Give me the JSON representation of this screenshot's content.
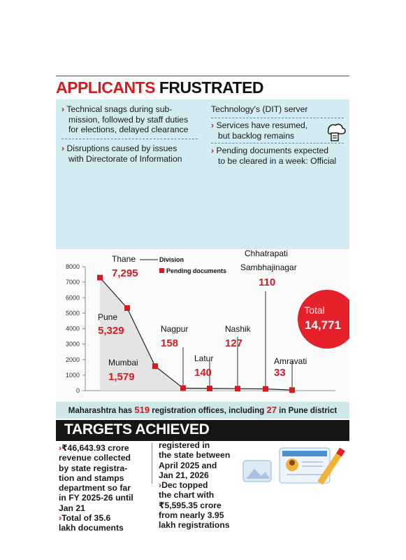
{
  "header": {
    "title_red": "APPLICANTS",
    "title_black": "FRUSTRATED"
  },
  "info": {
    "b1": [
      "Technical snags during sub-",
      "mission, followed by staff duties",
      "for elections, delayed clearance"
    ],
    "b2": [
      "Disruptions caused by issues",
      "with Directorate of Information"
    ],
    "b3": [
      "Technology's (DIT) server"
    ],
    "b4": [
      "Services have resumed,",
      "but backlog remains"
    ],
    "b5": [
      "Pending documents expected",
      "to be cleared in a week: Official"
    ],
    "icon": "server-cloud-icon"
  },
  "chart_data": {
    "type": "area",
    "categories": [
      "Thane",
      "Pune",
      "Mumbai",
      "Nagpur",
      "Latur",
      "Nashik",
      "Chhatrapati Sambhajinagar",
      "Amravati"
    ],
    "values": [
      7295,
      5329,
      1579,
      158,
      140,
      127,
      110,
      33
    ],
    "value_labels": [
      "7,295",
      "5,329",
      "1,579",
      "158",
      "140",
      "127",
      "110",
      "33"
    ],
    "category_labels": [
      "Thane",
      "Pune",
      "Mumbai",
      "Nagpur",
      "Latur",
      "Nashik",
      "Chhatrapati",
      "Amravati"
    ],
    "category_label_line2": "Sambhajinagar",
    "yticks": [
      0,
      1000,
      2000,
      3000,
      4000,
      5000,
      6000,
      7000,
      8000
    ],
    "ylim": [
      0,
      8000
    ],
    "legend": {
      "division": "Division",
      "pending": "Pending documents",
      "position": "top"
    },
    "total": {
      "label": "Total",
      "value": "14,771"
    },
    "colors": {
      "marker": "#d71920",
      "area": "#e4e4e4",
      "total_circle": "#e4202a"
    }
  },
  "strip": {
    "t1": "Maharashtra has ",
    "n1": "519",
    "t2": " registration offices, including ",
    "n2": "27",
    "t3": " in Pune district"
  },
  "targets": {
    "title": "TARGETS ACHIEVED",
    "c1": [
      "₹46,643.93 crore",
      "revenue collected",
      "by state registra-",
      "tion and stamps",
      "department so far",
      "in FY 2025-26 until",
      "Jan 21"
    ],
    "c1b": [
      "Total of 35.6",
      "lakh documents"
    ],
    "c2": [
      "registered in",
      "the state between",
      "April 2025 and",
      "Jan 21, 2026"
    ],
    "c2b": [
      "Dec topped",
      "the chart with",
      "₹5,595.35 crore",
      "from nearly 3.95",
      "lakh registrations"
    ],
    "illustration": "documents-pencil-illustration"
  }
}
